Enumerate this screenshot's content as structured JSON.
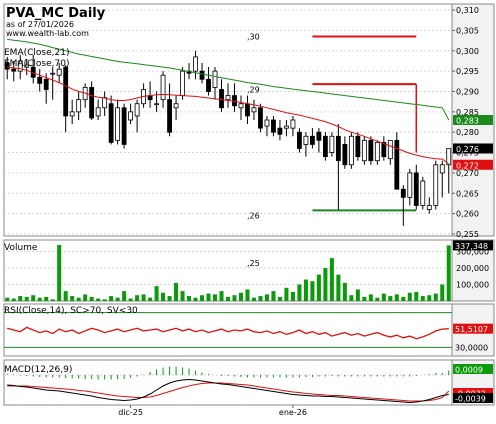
{
  "header": {
    "title": "PVA_MC Daily",
    "date": "as of 27/01/2026",
    "site": "www.wealth-lab.com"
  },
  "colors": {
    "ema21": "#e01010",
    "ema70": "#1a8a1a",
    "bullish": "#ffffff",
    "bearish": "#000000",
    "volume": "#0a9a0a",
    "rsi": "#e01010",
    "rsi_levels": "#1a8a1a",
    "macd": "#000000",
    "macd_signal": "#e01010",
    "macd_hist": "#0a9a0a",
    "level_red": "#e01010",
    "level_green": "#1a8a1a",
    "panel_bg": "#ffffff",
    "axis_bg": "#f2f2f2"
  },
  "chart_data": [
    {
      "id": "price",
      "type": "candlestick",
      "legend": [
        "EMA(Close,21)",
        "EMA(Close,70)"
      ],
      "ylim": [
        0.2545,
        0.3115
      ],
      "yticks": [
        0.255,
        0.26,
        0.265,
        0.27,
        0.275,
        0.28,
        0.285,
        0.29,
        0.295,
        0.3,
        0.305,
        0.31
      ],
      "ytick_labels": [
        "0,255",
        "0,260",
        "0,265",
        "0,270",
        "0,275",
        "0,280",
        "0,285",
        "0,290",
        "0,295",
        "0,300",
        "0,305",
        "0,310"
      ],
      "last_values": [
        {
          "label": "0,283",
          "value": 0.283,
          "color": "#1a8a1a"
        },
        {
          "label": "0,276",
          "value": 0.276,
          "color": "#000000"
        },
        {
          "label": "0,272",
          "value": 0.272,
          "color": "#e01010"
        }
      ],
      "annotations": [
        {
          "text": ",30",
          "y": 0.3035
        },
        {
          "text": ",29",
          "y": 0.2905
        },
        {
          "text": ",26",
          "y": 0.2595
        }
      ],
      "levels": [
        {
          "value": 0.3035,
          "x_from": 47,
          "x_to": 63,
          "color": "#e01010"
        },
        {
          "value": 0.2918,
          "x_from": 47,
          "x_to": 63,
          "color": "#e01010"
        },
        {
          "value": 0.2608,
          "x_from": 47,
          "x_to": 63,
          "color": "#1a8a1a"
        }
      ],
      "ohlc": [
        [
          0.297,
          0.2985,
          0.293,
          0.2955
        ],
        [
          0.2955,
          0.2975,
          0.2925,
          0.295
        ],
        [
          0.295,
          0.299,
          0.293,
          0.2975
        ],
        [
          0.296,
          0.298,
          0.294,
          0.2965
        ],
        [
          0.296,
          0.299,
          0.292,
          0.2935
        ],
        [
          0.2935,
          0.2955,
          0.29,
          0.292
        ],
        [
          0.293,
          0.2945,
          0.287,
          0.2905
        ],
        [
          0.2945,
          0.296,
          0.288,
          0.2945
        ],
        [
          0.294,
          0.297,
          0.292,
          0.2955
        ],
        [
          0.296,
          0.2965,
          0.28,
          0.284
        ],
        [
          0.284,
          0.288,
          0.282,
          0.285
        ],
        [
          0.285,
          0.29,
          0.283,
          0.288
        ],
        [
          0.288,
          0.292,
          0.286,
          0.291
        ],
        [
          0.291,
          0.2925,
          0.283,
          0.2835
        ],
        [
          0.284,
          0.288,
          0.283,
          0.286
        ],
        [
          0.286,
          0.29,
          0.284,
          0.2885
        ],
        [
          0.287,
          0.289,
          0.277,
          0.2775
        ],
        [
          0.278,
          0.288,
          0.277,
          0.286
        ],
        [
          0.286,
          0.287,
          0.276,
          0.277
        ],
        [
          0.283,
          0.287,
          0.282,
          0.285
        ],
        [
          0.284,
          0.288,
          0.28,
          0.287
        ],
        [
          0.287,
          0.292,
          0.286,
          0.2905
        ],
        [
          0.289,
          0.2925,
          0.286,
          0.288
        ],
        [
          0.287,
          0.29,
          0.285,
          0.287
        ],
        [
          0.288,
          0.295,
          0.286,
          0.294
        ],
        [
          0.288,
          0.292,
          0.279,
          0.28
        ],
        [
          0.286,
          0.289,
          0.283,
          0.287
        ],
        [
          0.289,
          0.296,
          0.288,
          0.295
        ],
        [
          0.295,
          0.297,
          0.293,
          0.2945
        ],
        [
          0.295,
          0.3,
          0.293,
          0.2985
        ],
        [
          0.295,
          0.297,
          0.292,
          0.293
        ],
        [
          0.293,
          0.296,
          0.289,
          0.29
        ],
        [
          0.291,
          0.296,
          0.288,
          0.295
        ],
        [
          0.2905,
          0.293,
          0.285,
          0.286
        ],
        [
          0.288,
          0.292,
          0.286,
          0.289
        ],
        [
          0.289,
          0.292,
          0.285,
          0.2865
        ],
        [
          0.286,
          0.289,
          0.283,
          0.287
        ],
        [
          0.287,
          0.289,
          0.282,
          0.284
        ],
        [
          0.285,
          0.288,
          0.283,
          0.286
        ],
        [
          0.286,
          0.287,
          0.28,
          0.281
        ],
        [
          0.2815,
          0.284,
          0.279,
          0.283
        ],
        [
          0.283,
          0.284,
          0.279,
          0.28
        ],
        [
          0.281,
          0.283,
          0.278,
          0.2795
        ],
        [
          0.281,
          0.283,
          0.279,
          0.2815
        ],
        [
          0.281,
          0.284,
          0.279,
          0.283
        ],
        [
          0.28,
          0.281,
          0.275,
          0.276
        ],
        [
          0.277,
          0.28,
          0.274,
          0.279
        ],
        [
          0.279,
          0.281,
          0.276,
          0.277
        ],
        [
          0.28,
          0.281,
          0.275,
          0.278
        ],
        [
          0.279,
          0.28,
          0.273,
          0.274
        ],
        [
          0.275,
          0.28,
          0.274,
          0.279
        ],
        [
          0.279,
          0.282,
          0.261,
          0.273
        ],
        [
          0.277,
          0.279,
          0.271,
          0.272
        ],
        [
          0.272,
          0.28,
          0.271,
          0.279
        ],
        [
          0.279,
          0.28,
          0.273,
          0.274
        ],
        [
          0.273,
          0.279,
          0.272,
          0.278
        ],
        [
          0.278,
          0.279,
          0.272,
          0.273
        ],
        [
          0.273,
          0.278,
          0.272,
          0.2775
        ],
        [
          0.2775,
          0.279,
          0.273,
          0.274
        ],
        [
          0.2735,
          0.278,
          0.272,
          0.278
        ],
        [
          0.278,
          0.28,
          0.266,
          0.266
        ],
        [
          0.266,
          0.267,
          0.257,
          0.264
        ],
        [
          0.264,
          0.271,
          0.262,
          0.27
        ],
        [
          0.27,
          0.272,
          0.261,
          0.262
        ],
        [
          0.262,
          0.269,
          0.261,
          0.268
        ],
        [
          0.261,
          0.264,
          0.26,
          0.262
        ],
        [
          0.262,
          0.273,
          0.261,
          0.272
        ],
        [
          0.27,
          0.273,
          0.264,
          0.272
        ],
        [
          0.272,
          0.276,
          0.265,
          0.276
        ]
      ],
      "ema21": [
        0.296,
        0.2958,
        0.2956,
        0.2952,
        0.2946,
        0.294,
        0.2934,
        0.2928,
        0.2922,
        0.2914,
        0.2906,
        0.29,
        0.2896,
        0.289,
        0.2886,
        0.2884,
        0.288,
        0.2878,
        0.2878,
        0.288,
        0.2884,
        0.2888,
        0.289,
        0.2892,
        0.2893,
        0.2892,
        0.2891,
        0.289,
        0.2889,
        0.2888,
        0.2886,
        0.2884,
        0.2882,
        0.288,
        0.2878,
        0.2876,
        0.2873,
        0.287,
        0.2867,
        0.2864,
        0.286,
        0.2856,
        0.2852,
        0.2848,
        0.2845,
        0.2842,
        0.2838,
        0.2834,
        0.283,
        0.2826,
        0.282,
        0.2814,
        0.2806,
        0.28,
        0.2795,
        0.279,
        0.2784,
        0.2778,
        0.2772,
        0.2766,
        0.276,
        0.2754,
        0.2748,
        0.2744,
        0.274,
        0.2737,
        0.2735,
        0.2734,
        0.2722
      ],
      "ema70": [
        0.3028,
        0.3026,
        0.3024,
        0.3022,
        0.3019,
        0.3016,
        0.3012,
        0.3008,
        0.3004,
        0.3,
        0.2996,
        0.2992,
        0.2989,
        0.2986,
        0.2983,
        0.298,
        0.2977,
        0.2974,
        0.2972,
        0.297,
        0.2968,
        0.2966,
        0.2964,
        0.2962,
        0.296,
        0.2958,
        0.2955,
        0.2952,
        0.2949,
        0.2946,
        0.2943,
        0.294,
        0.2937,
        0.2934,
        0.2931,
        0.2928,
        0.2925,
        0.2922,
        0.292,
        0.2918,
        0.2915,
        0.2912,
        0.291,
        0.2908,
        0.2906,
        0.2904,
        0.2902,
        0.29,
        0.2898,
        0.2896,
        0.2894,
        0.2892,
        0.289,
        0.2888,
        0.2886,
        0.2884,
        0.2882,
        0.288,
        0.2878,
        0.2876,
        0.2874,
        0.2872,
        0.287,
        0.2868,
        0.2866,
        0.2864,
        0.2862,
        0.286,
        0.283
      ]
    },
    {
      "id": "volume",
      "type": "bar",
      "title": "Volume",
      "ylim": [
        0,
        370000
      ],
      "yticks": [
        100000,
        200000,
        300000
      ],
      "ytick_labels": [
        "100,000",
        "200,000",
        "300,000"
      ],
      "last_value": {
        "label": "337,348",
        "value": 337348
      },
      "annotation": {
        "text": ",25"
      },
      "values": [
        20000,
        15000,
        30000,
        25000,
        35000,
        20000,
        25000,
        10000,
        340000,
        60000,
        30000,
        20000,
        40000,
        25000,
        15000,
        10000,
        30000,
        20000,
        60000,
        15000,
        35000,
        40000,
        20000,
        90000,
        50000,
        30000,
        110000,
        60000,
        30000,
        20000,
        35000,
        45000,
        40000,
        60000,
        25000,
        35000,
        50000,
        70000,
        20000,
        30000,
        40000,
        60000,
        25000,
        80000,
        55000,
        100000,
        130000,
        120000,
        160000,
        200000,
        260000,
        160000,
        110000,
        35000,
        70000,
        25000,
        40000,
        20000,
        45000,
        30000,
        40000,
        25000,
        50000,
        55000,
        30000,
        35000,
        45000,
        100000,
        337348
      ]
    },
    {
      "id": "rsi",
      "type": "line",
      "title": "RSI(Close,14), SC>70, SV<30",
      "ylim": [
        20,
        80
      ],
      "levels": [
        30,
        70
      ],
      "ytick_labels": [
        "30,0000"
      ],
      "last_value": {
        "label": "51,5107",
        "value": 51.5107
      },
      "values": [
        52,
        50,
        48,
        53,
        50,
        47,
        49,
        46,
        51,
        48,
        50,
        46,
        49,
        52,
        50,
        47,
        49,
        51,
        48,
        50,
        52,
        49,
        50,
        51,
        48,
        50,
        52,
        49,
        51,
        48,
        50,
        47,
        49,
        51,
        48,
        50,
        49,
        51,
        48,
        47,
        49,
        46,
        48,
        45,
        47,
        50,
        46,
        48,
        45,
        47,
        43,
        45,
        47,
        44,
        46,
        43,
        45,
        47,
        44,
        42,
        44,
        41,
        43,
        40,
        42,
        45,
        49,
        51,
        51.5
      ]
    },
    {
      "id": "macd",
      "type": "line",
      "title": "MACD(12,26,9)",
      "ylim": [
        -0.006,
        0.003
      ],
      "last_values": [
        {
          "label": "0,0009",
          "value": 0.0009,
          "color": "#0a9a0a"
        },
        {
          "label": "-0,0032",
          "value": -0.0032,
          "color": "#e01010"
        },
        {
          "label": "-0,0039",
          "value": -0.0039,
          "color": "#000000"
        }
      ],
      "macd": [
        -0.002,
        -0.0021,
        -0.0023,
        -0.0024,
        -0.0026,
        -0.0028,
        -0.003,
        -0.0031,
        -0.0032,
        -0.0034,
        -0.0036,
        -0.0038,
        -0.004,
        -0.0042,
        -0.0045,
        -0.0047,
        -0.0049,
        -0.005,
        -0.0051,
        -0.005,
        -0.0048,
        -0.0044,
        -0.0038,
        -0.003,
        -0.0022,
        -0.0016,
        -0.0012,
        -0.001,
        -0.0009,
        -0.001,
        -0.0012,
        -0.0014,
        -0.0016,
        -0.0018,
        -0.0019,
        -0.0021,
        -0.0023,
        -0.0025,
        -0.0027,
        -0.0029,
        -0.0031,
        -0.0033,
        -0.0035,
        -0.0037,
        -0.0039,
        -0.004,
        -0.0041,
        -0.0042,
        -0.0042,
        -0.0043,
        -0.0043,
        -0.0044,
        -0.0045,
        -0.0046,
        -0.0047,
        -0.0048,
        -0.0049,
        -0.005,
        -0.0051,
        -0.0052,
        -0.0053,
        -0.0054,
        -0.0055,
        -0.0054,
        -0.0052,
        -0.0049,
        -0.0045,
        -0.0041,
        -0.0039
      ],
      "signal": [
        -0.0022,
        -0.0022,
        -0.0022,
        -0.0022,
        -0.0023,
        -0.0024,
        -0.0025,
        -0.0026,
        -0.0027,
        -0.0028,
        -0.0029,
        -0.0031,
        -0.0032,
        -0.0034,
        -0.0036,
        -0.0038,
        -0.004,
        -0.0042,
        -0.0043,
        -0.0044,
        -0.0045,
        -0.0045,
        -0.0044,
        -0.0041,
        -0.0037,
        -0.0033,
        -0.0029,
        -0.0025,
        -0.0022,
        -0.0019,
        -0.0017,
        -0.0016,
        -0.0016,
        -0.0016,
        -0.0017,
        -0.0018,
        -0.0019,
        -0.002,
        -0.0022,
        -0.0024,
        -0.0026,
        -0.0028,
        -0.003,
        -0.0032,
        -0.0034,
        -0.0035,
        -0.0037,
        -0.0038,
        -0.0039,
        -0.004,
        -0.0041,
        -0.0041,
        -0.0042,
        -0.0043,
        -0.0044,
        -0.0045,
        -0.0046,
        -0.0047,
        -0.0048,
        -0.0049,
        -0.005,
        -0.0051,
        -0.0052,
        -0.0052,
        -0.0052,
        -0.0051,
        -0.0049,
        -0.0045,
        -0.0032
      ],
      "hist": [
        0.0002,
        0.0001,
        -0.0001,
        -0.0002,
        -0.0003,
        -0.0004,
        -0.0005,
        -0.0005,
        -0.0005,
        -0.0006,
        -0.0007,
        -0.0007,
        -0.0008,
        -0.0008,
        -0.0009,
        -0.0009,
        -0.0009,
        -0.0008,
        -0.0008,
        -0.0006,
        -0.0003,
        0.0001,
        0.0006,
        0.0011,
        0.0015,
        0.0017,
        0.0017,
        0.0015,
        0.0013,
        0.0009,
        0.0005,
        0.0002,
        0.0,
        -0.0002,
        -0.0002,
        -0.0003,
        -0.0004,
        -0.0005,
        -0.0005,
        -0.0005,
        -0.0005,
        -0.0005,
        -0.0005,
        -0.0005,
        -0.0005,
        -0.0005,
        -0.0004,
        -0.0004,
        -0.0003,
        -0.0003,
        -0.0002,
        -0.0003,
        -0.0003,
        -0.0003,
        -0.0003,
        -0.0003,
        -0.0003,
        -0.0003,
        -0.0003,
        -0.0003,
        -0.0003,
        -0.0003,
        -0.0003,
        -0.0002,
        0.0,
        0.0002,
        0.0004,
        0.0004,
        0.0009
      ]
    }
  ],
  "x_axis": {
    "labels": [
      {
        "text": "dic-25",
        "index": 19
      },
      {
        "text": "ene-26",
        "index": 44
      }
    ]
  }
}
